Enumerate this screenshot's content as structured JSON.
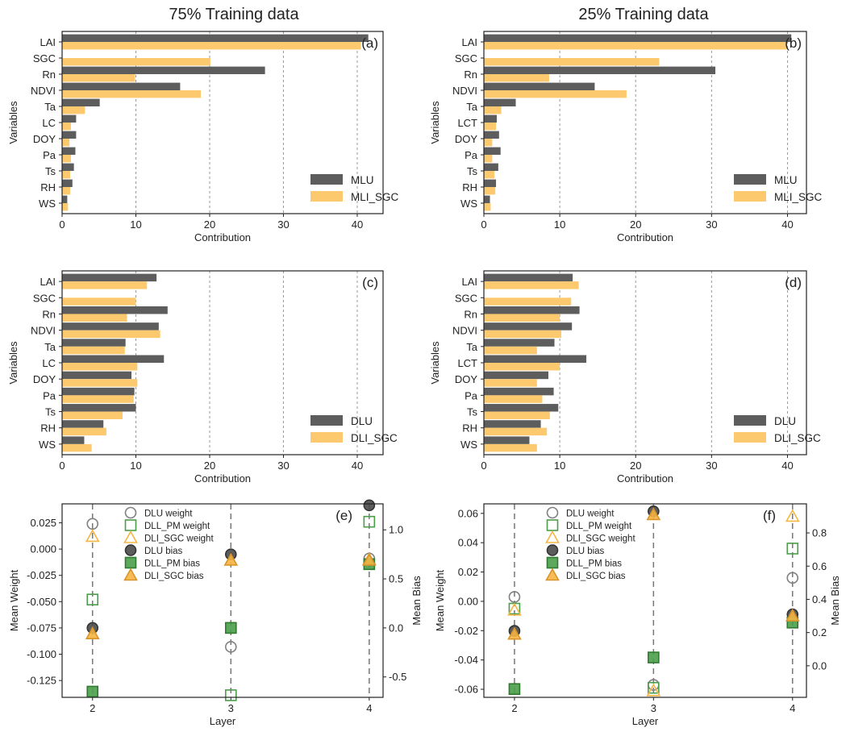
{
  "colors": {
    "dark_bar": "#5d5d5d",
    "light_bar": "#fdc96e",
    "grey_marker": "#808080",
    "green_marker": "#4a9e4a",
    "orange_marker": "#f6b544",
    "dark_marker": "#4a4a4a"
  },
  "figure_titles": [
    "75% Training data",
    "25% Training data"
  ],
  "chart_data": [
    {
      "type": "bar",
      "orientation": "horizontal",
      "panel": "(a)",
      "categories": [
        "LAI",
        "SGC",
        "Rn",
        "NDVI",
        "Ta",
        "LC",
        "DOY",
        "Pa",
        "Ts",
        "RH",
        "WS"
      ],
      "series": [
        {
          "name": "MLU",
          "values": [
            41.5,
            null,
            27.5,
            16.0,
            5.1,
            1.9,
            1.9,
            1.8,
            1.6,
            1.4,
            0.7
          ]
        },
        {
          "name": "MLI_SGC",
          "values": [
            40.5,
            20.1,
            9.9,
            18.8,
            3.1,
            1.2,
            1.0,
            1.2,
            1.1,
            1.1,
            0.8
          ]
        }
      ],
      "xlabel": "Contribution",
      "ylabel": "Variables",
      "xlim": [
        0,
        43.5
      ],
      "xticks": [
        0,
        10,
        20,
        30,
        40
      ],
      "grid": "vertical dashed",
      "legend": "bottom-right"
    },
    {
      "type": "bar",
      "orientation": "horizontal",
      "panel": "(b)",
      "categories": [
        "LAI",
        "SGC",
        "Rn",
        "NDVI",
        "Ta",
        "LCT",
        "DOY",
        "Pa",
        "Ts",
        "RH",
        "WS"
      ],
      "series": [
        {
          "name": "MLU",
          "values": [
            40.5,
            null,
            30.5,
            14.6,
            4.2,
            1.7,
            2.0,
            2.2,
            1.9,
            1.6,
            0.8
          ]
        },
        {
          "name": "MLI_SGC",
          "values": [
            39.9,
            23.1,
            8.6,
            18.8,
            2.3,
            1.6,
            1.1,
            1.1,
            1.4,
            1.5,
            0.9
          ]
        }
      ],
      "xlabel": "Contribution",
      "ylabel": "Variables",
      "xlim": [
        0,
        42.5
      ],
      "xticks": [
        0,
        10,
        20,
        30,
        40
      ],
      "grid": "vertical dashed",
      "legend": "bottom-right"
    },
    {
      "type": "bar",
      "orientation": "horizontal",
      "panel": "(c)",
      "categories": [
        "LAI",
        "SGC",
        "Rn",
        "NDVI",
        "Ta",
        "LC",
        "DOY",
        "Pa",
        "Ts",
        "RH",
        "WS"
      ],
      "series": [
        {
          "name": "DLU",
          "values": [
            12.8,
            null,
            14.3,
            13.1,
            8.6,
            13.8,
            9.4,
            9.8,
            10.0,
            5.6,
            3.0
          ]
        },
        {
          "name": "DLI_SGC",
          "values": [
            11.5,
            10.0,
            8.8,
            13.3,
            8.5,
            10.2,
            10.2,
            9.7,
            8.2,
            6.0,
            4.0
          ]
        }
      ],
      "xlabel": "Contribution",
      "ylabel": "Variables",
      "xlim": [
        0,
        43.5
      ],
      "xticks": [
        0,
        10,
        20,
        30,
        40
      ],
      "grid": "vertical dashed",
      "legend": "bottom-right"
    },
    {
      "type": "bar",
      "orientation": "horizontal",
      "panel": "(d)",
      "categories": [
        "LAI",
        "SGC",
        "Rn",
        "NDVI",
        "Ta",
        "LCT",
        "DOY",
        "Pa",
        "Ts",
        "RH",
        "WS"
      ],
      "series": [
        {
          "name": "DLU",
          "values": [
            11.7,
            null,
            12.6,
            11.6,
            9.3,
            13.5,
            8.5,
            9.2,
            9.8,
            7.5,
            6.0
          ]
        },
        {
          "name": "DLI_SGC",
          "values": [
            12.5,
            11.5,
            10.0,
            10.2,
            7.0,
            10.0,
            7.0,
            7.7,
            8.7,
            8.3,
            7.0
          ]
        }
      ],
      "xlabel": "Contribution",
      "ylabel": "Variables",
      "xlim": [
        0,
        42.5
      ],
      "xticks": [
        0,
        10,
        20,
        30,
        40
      ],
      "grid": "vertical dashed",
      "legend": "bottom-right"
    },
    {
      "type": "scatter",
      "panel": "(e)",
      "x": [
        2,
        3,
        4
      ],
      "xlabel": "Layer",
      "ylabel": "Mean Weight",
      "y2label": "Mean Bias",
      "xlim": [
        1.78,
        4.1
      ],
      "ylim": [
        -0.141,
        0.043
      ],
      "yticks": [
        -0.125,
        -0.1,
        -0.075,
        -0.05,
        -0.025,
        0.0,
        0.025
      ],
      "y2lim": [
        -0.708,
        1.265
      ],
      "y2ticks": [
        -0.5,
        0.0,
        0.5,
        1.0
      ],
      "series": [
        {
          "name": "DLU weight",
          "axis": "left",
          "marker": "open-circle",
          "values": [
            0.024,
            -0.093,
            -0.009
          ]
        },
        {
          "name": "DLL_PM weight",
          "axis": "left",
          "marker": "open-square",
          "values": [
            -0.048,
            -0.139,
            0.026
          ]
        },
        {
          "name": "DLI_SGC weight",
          "axis": "left",
          "marker": "open-triangle",
          "values": [
            0.012,
            null,
            -0.01
          ]
        },
        {
          "name": "DLU bias",
          "axis": "right",
          "marker": "filled-circle",
          "values": [
            0.0,
            0.75,
            1.25
          ]
        },
        {
          "name": "DLL_PM bias",
          "axis": "right",
          "marker": "filled-square",
          "values": [
            -0.65,
            0.0,
            0.65
          ]
        },
        {
          "name": "DLI_SGC bias",
          "axis": "right",
          "marker": "filled-triangle",
          "values": [
            -0.06,
            0.69,
            0.69
          ]
        }
      ],
      "legend": "top-left"
    },
    {
      "type": "scatter",
      "panel": "(f)",
      "x": [
        2,
        3,
        4
      ],
      "xlabel": "Layer",
      "ylabel": "Mean Weight",
      "y2label": "Mean Bias",
      "xlim": [
        1.78,
        4.1
      ],
      "ylim": [
        -0.0655,
        0.0665
      ],
      "yticks": [
        -0.06,
        -0.04,
        -0.02,
        0.0,
        0.02,
        0.04,
        0.06
      ],
      "y2lim": [
        -0.19,
        0.975
      ],
      "y2ticks": [
        0.0,
        0.2,
        0.4,
        0.6,
        0.8
      ],
      "series": [
        {
          "name": "DLU weight",
          "axis": "left",
          "marker": "open-circle",
          "values": [
            0.003,
            -0.057,
            0.016
          ]
        },
        {
          "name": "DLL_PM weight",
          "axis": "left",
          "marker": "open-square",
          "values": [
            -0.005,
            -0.059,
            0.036
          ]
        },
        {
          "name": "DLI_SGC weight",
          "axis": "left",
          "marker": "open-triangle",
          "values": [
            -0.006,
            -0.061,
            0.058
          ]
        },
        {
          "name": "DLU bias",
          "axis": "right",
          "marker": "filled-circle",
          "values": [
            0.21,
            0.93,
            0.31
          ]
        },
        {
          "name": "DLL_PM bias",
          "axis": "right",
          "marker": "filled-square",
          "values": [
            -0.14,
            0.05,
            0.26
          ]
        },
        {
          "name": "DLI_SGC bias",
          "axis": "right",
          "marker": "filled-triangle",
          "values": [
            0.19,
            0.91,
            0.3
          ]
        }
      ],
      "legend": "top-left"
    }
  ]
}
